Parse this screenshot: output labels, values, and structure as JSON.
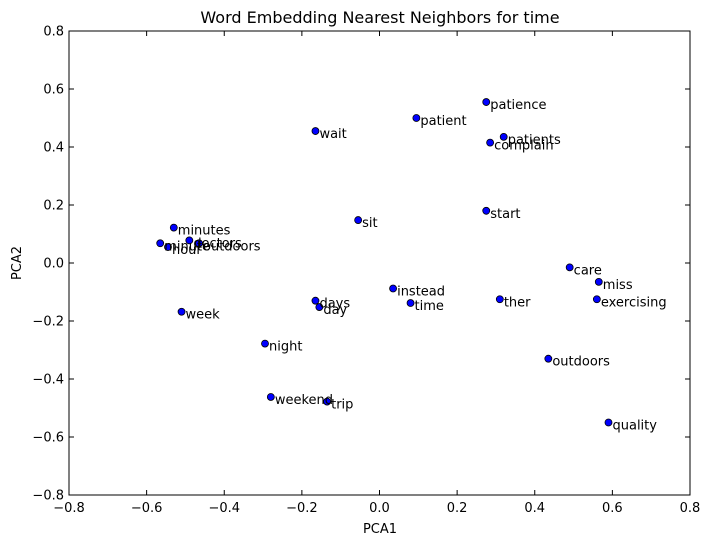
{
  "chart_data": {
    "type": "scatter",
    "title": "Word Embedding Nearest Neighbors for time",
    "xlabel": "PCA1",
    "ylabel": "PCA2",
    "xlim": [
      -0.8,
      0.8
    ],
    "ylim": [
      -0.8,
      0.8
    ],
    "xticks": [
      -0.8,
      -0.6,
      -0.4,
      -0.2,
      0.0,
      0.2,
      0.4,
      0.6,
      0.8
    ],
    "yticks": [
      -0.8,
      -0.6,
      -0.4,
      -0.2,
      0.0,
      0.2,
      0.4,
      0.6,
      0.8
    ],
    "xtick_labels": [
      "−0.8",
      "−0.6",
      "−0.4",
      "−0.2",
      "0.0",
      "0.2",
      "0.4",
      "0.6",
      "0.8"
    ],
    "ytick_labels": [
      "−0.8",
      "−0.6",
      "−0.4",
      "−0.2",
      "0.0",
      "0.2",
      "0.4",
      "0.6",
      "0.8"
    ],
    "grid": false,
    "marker_color": "#0000ff",
    "points": [
      {
        "label": "patience",
        "x": 0.275,
        "y": 0.555
      },
      {
        "label": "patient",
        "x": 0.095,
        "y": 0.5
      },
      {
        "label": "wait",
        "x": -0.165,
        "y": 0.455
      },
      {
        "label": "patients",
        "x": 0.32,
        "y": 0.435
      },
      {
        "label": "complain",
        "x": 0.285,
        "y": 0.415
      },
      {
        "label": "start",
        "x": 0.275,
        "y": 0.18
      },
      {
        "label": "sit",
        "x": -0.055,
        "y": 0.148
      },
      {
        "label": "minutes",
        "x": -0.53,
        "y": 0.122
      },
      {
        "label": "doctors",
        "x": -0.49,
        "y": 0.078
      },
      {
        "label": "outdoors",
        "x": -0.465,
        "y": 0.068
      },
      {
        "label": "minute",
        "x": -0.565,
        "y": 0.068
      },
      {
        "label": "hour",
        "x": -0.545,
        "y": 0.055
      },
      {
        "label": "care",
        "x": 0.49,
        "y": -0.015
      },
      {
        "label": "miss",
        "x": 0.565,
        "y": -0.065
      },
      {
        "label": "instead",
        "x": 0.035,
        "y": -0.088
      },
      {
        "label": "exercising",
        "x": 0.56,
        "y": -0.125
      },
      {
        "label": "ther",
        "x": 0.31,
        "y": -0.125
      },
      {
        "label": "days",
        "x": -0.165,
        "y": -0.13
      },
      {
        "label": "time",
        "x": 0.08,
        "y": -0.138
      },
      {
        "label": "day",
        "x": -0.155,
        "y": -0.152
      },
      {
        "label": "week",
        "x": -0.51,
        "y": -0.168
      },
      {
        "label": "night",
        "x": -0.295,
        "y": -0.278
      },
      {
        "label": "outdoors",
        "x": 0.435,
        "y": -0.33
      },
      {
        "label": "weekend",
        "x": -0.28,
        "y": -0.462
      },
      {
        "label": "trip",
        "x": -0.135,
        "y": -0.478
      },
      {
        "label": "quality",
        "x": 0.59,
        "y": -0.55
      }
    ]
  }
}
